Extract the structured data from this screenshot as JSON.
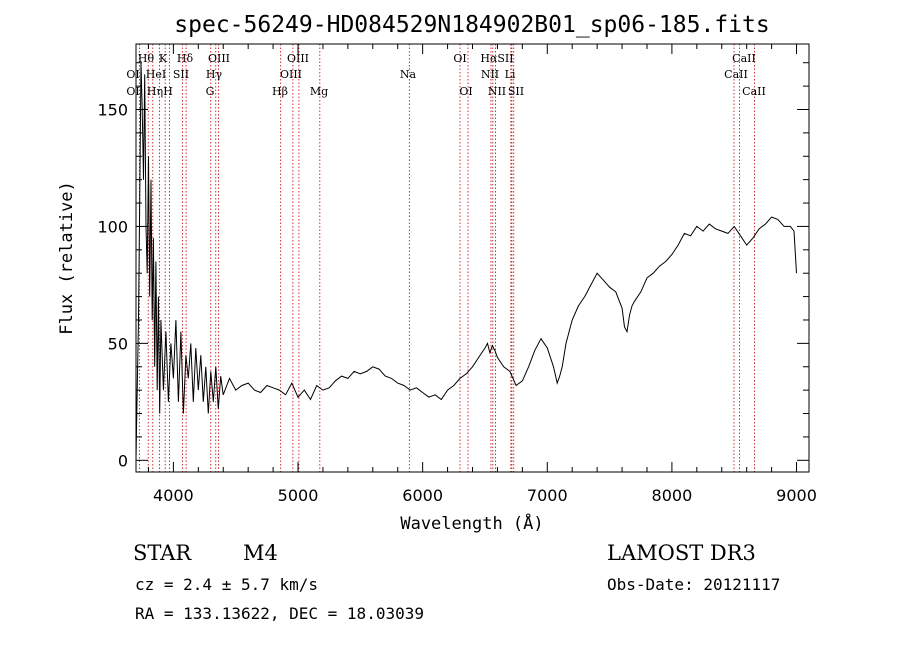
{
  "chart_data": {
    "type": "line",
    "title": "spec-56249-HD084529N184902B01_sp06-185.fits",
    "xlabel": "Wavelength (Å)",
    "ylabel": "Flux (relative)",
    "xlim": [
      3700,
      9100
    ],
    "ylim": [
      -5,
      178
    ],
    "xticks": [
      4000,
      5000,
      6000,
      7000,
      8000,
      9000
    ],
    "yticks": [
      0,
      50,
      100,
      150
    ],
    "grid": false,
    "series": [
      {
        "color": "#000000",
        "x": [
          3700,
          3710,
          3720,
          3730,
          3740,
          3750,
          3760,
          3770,
          3780,
          3790,
          3800,
          3810,
          3820,
          3830,
          3840,
          3850,
          3860,
          3870,
          3880,
          3890,
          3900,
          3920,
          3940,
          3960,
          3980,
          4000,
          4020,
          4040,
          4060,
          4080,
          4100,
          4120,
          4140,
          4160,
          4180,
          4200,
          4220,
          4240,
          4260,
          4280,
          4300,
          4320,
          4340,
          4360,
          4380,
          4400,
          4450,
          4500,
          4550,
          4600,
          4650,
          4700,
          4750,
          4800,
          4850,
          4900,
          4950,
          5000,
          5050,
          5100,
          5150,
          5200,
          5250,
          5300,
          5350,
          5400,
          5450,
          5500,
          5550,
          5600,
          5650,
          5700,
          5750,
          5800,
          5850,
          5900,
          5950,
          6000,
          6050,
          6100,
          6150,
          6200,
          6250,
          6300,
          6350,
          6400,
          6450,
          6500,
          6520,
          6540,
          6560,
          6580,
          6600,
          6650,
          6700,
          6750,
          6800,
          6850,
          6900,
          6950,
          7000,
          7050,
          7080,
          7100,
          7120,
          7150,
          7200,
          7250,
          7300,
          7350,
          7400,
          7450,
          7500,
          7550,
          7600,
          7620,
          7640,
          7660,
          7680,
          7700,
          7750,
          7800,
          7850,
          7900,
          7950,
          8000,
          8050,
          8100,
          8150,
          8200,
          8250,
          8300,
          8350,
          8400,
          8450,
          8500,
          8550,
          8600,
          8650,
          8700,
          8750,
          8800,
          8850,
          8900,
          8950,
          8980,
          9000
        ],
        "y": [
          0,
          30,
          60,
          110,
          170,
          150,
          120,
          165,
          100,
          80,
          130,
          70,
          120,
          60,
          95,
          40,
          85,
          30,
          70,
          20,
          60,
          30,
          55,
          25,
          50,
          35,
          60,
          25,
          55,
          20,
          45,
          35,
          50,
          25,
          48,
          30,
          45,
          25,
          40,
          20,
          38,
          25,
          40,
          22,
          36,
          28,
          35,
          30,
          32,
          33,
          30,
          29,
          32,
          31,
          30,
          28,
          33,
          27,
          30,
          26,
          32,
          30,
          31,
          34,
          36,
          35,
          38,
          37,
          38,
          40,
          39,
          36,
          35,
          33,
          32,
          30,
          31,
          29,
          27,
          28,
          26,
          30,
          32,
          35,
          37,
          40,
          44,
          48,
          50,
          46,
          49,
          47,
          44,
          40,
          38,
          32,
          34,
          40,
          47,
          52,
          48,
          40,
          33,
          36,
          40,
          50,
          60,
          66,
          70,
          75,
          80,
          77,
          74,
          72,
          65,
          57,
          55,
          62,
          66,
          68,
          72,
          78,
          80,
          83,
          85,
          88,
          92,
          97,
          96,
          100,
          98,
          101,
          99,
          98,
          97,
          100,
          96,
          92,
          95,
          99,
          101,
          104,
          103,
          100,
          100,
          98,
          80
        ]
      }
    ],
    "lines": [
      {
        "name": "OII",
        "x": 3727
      },
      {
        "name": "Hθ",
        "x": 3798
      },
      {
        "name": "Hη",
        "x": 3835
      },
      {
        "name": "HeI",
        "x": 3889
      },
      {
        "name": "K",
        "x": 3934
      },
      {
        "name": "H",
        "x": 3968
      },
      {
        "name": "SII",
        "x": 4072
      },
      {
        "name": "Hδ",
        "x": 4102
      },
      {
        "name": "G",
        "x": 4300
      },
      {
        "name": "Hγ",
        "x": 4340
      },
      {
        "name": "OIII",
        "x": 4363
      },
      {
        "name": "Hβ",
        "x": 4861
      },
      {
        "name": "OIII",
        "x": 4959
      },
      {
        "name": "OIII",
        "x": 5007
      },
      {
        "name": "Mg",
        "x": 5175
      },
      {
        "name": "Na",
        "x": 5893
      },
      {
        "name": "OI",
        "x": 6300
      },
      {
        "name": "OI",
        "x": 6364
      },
      {
        "name": "NII",
        "x": 6548
      },
      {
        "name": "Hα",
        "x": 6563
      },
      {
        "name": "NII",
        "x": 6584
      },
      {
        "name": "Li",
        "x": 6708
      },
      {
        "name": "SII",
        "x": 6716
      },
      {
        "name": "SII",
        "x": 6731
      },
      {
        "name": "CaII",
        "x": 8498
      },
      {
        "name": "CaII",
        "x": 8542
      },
      {
        "name": "CaII",
        "x": 8662
      }
    ],
    "line_label_rows": [
      [
        "Hθ",
        "K",
        "Hδ",
        "OIII",
        "OIII",
        "OI",
        "HαSII",
        "CaII"
      ],
      [
        "OI",
        "HeI",
        "SII",
        "Hγ",
        "OIII",
        "Na",
        "NII",
        "Li",
        "CaII"
      ],
      [
        "OI",
        "Hη",
        "H",
        "G",
        "Hβ",
        "Mg",
        "OI",
        "NII",
        "SII",
        "CaII"
      ]
    ]
  },
  "info": {
    "class_text": "STAR",
    "subclass_text": "M4",
    "survey": "LAMOST DR3",
    "cz": "cz = 2.4 ± 5.7 km/s",
    "obs_date": "Obs-Date: 20121117",
    "coords": "RA = 133.13622, DEC =  18.03039"
  }
}
